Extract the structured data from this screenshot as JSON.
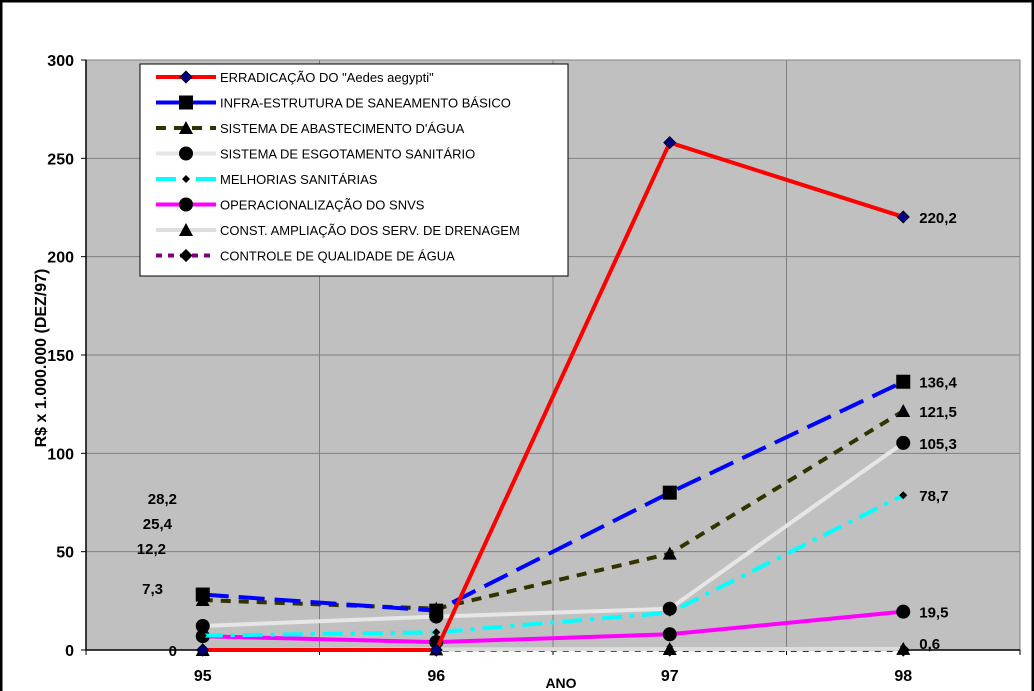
{
  "chart_data": {
    "type": "line",
    "xlabel": "ANO",
    "ylabel": "R$ x 1.000.000 (DEZ/97)",
    "categories": [
      "95",
      "96",
      "97",
      "98"
    ],
    "ylim": [
      0,
      300
    ],
    "yticks": [
      "0",
      "50",
      "100",
      "150",
      "200",
      "250",
      "300"
    ],
    "grid": true,
    "legend_position": "top-left",
    "series": [
      {
        "name": "ERRADICAÇÃO DO \"Aedes aegypti\"",
        "values": [
          0,
          0,
          258,
          220.2
        ],
        "color": "#ff0000",
        "dash": "solid",
        "marker": "diamond",
        "marker_color": "#000080",
        "labels": [
          "",
          "",
          "",
          "220,2"
        ]
      },
      {
        "name": "INFRA-ESTRUTURA DE SANEAMENTO BÁSICO",
        "values": [
          28.2,
          20,
          80,
          136.4
        ],
        "color": "#0000ff",
        "dash": "longdash",
        "marker": "square",
        "marker_color": "#000000",
        "labels": [
          "28,2",
          "",
          "",
          "136,4"
        ]
      },
      {
        "name": "SISTEMA DE ABASTECIMENTO D'ÁGUA",
        "values": [
          25.4,
          21,
          49,
          121.5
        ],
        "color": "#333300",
        "dash": "dash",
        "marker": "triangle",
        "marker_color": "#000000",
        "labels": [
          "25,4",
          "",
          "",
          "121,5"
        ]
      },
      {
        "name": "SISTEMA DE ESGOTAMENTO SANITÁRIO",
        "values": [
          12.2,
          17,
          21,
          105.3
        ],
        "color": "#e6e6e6",
        "dash": "solid",
        "marker": "circle",
        "marker_color": "#000000",
        "labels": [
          "12,2",
          "",
          "",
          "105,3"
        ]
      },
      {
        "name": "MELHORIAS SANITÁRIAS",
        "values": [
          7.3,
          9,
          19,
          78.7
        ],
        "color": "#00ffff",
        "dash": "dashdot",
        "marker": "smalldiamond",
        "marker_color": "#000000",
        "labels": [
          "7,3",
          "",
          "",
          "78,7"
        ]
      },
      {
        "name": "OPERACIONALIZAÇÃO DO SNVS",
        "values": [
          7,
          4,
          8,
          19.5
        ],
        "color": "#ff00ff",
        "dash": "solid",
        "marker": "circle",
        "marker_color": "#000000",
        "labels": [
          "",
          "",
          "",
          "19,5"
        ]
      },
      {
        "name": "CONST. AMPLIAÇÃO DOS SERV. DE DRENAGEM",
        "values": [
          0,
          0.3,
          0.5,
          0.6
        ],
        "color": "#dddddd",
        "dash": "solid",
        "marker": "triangle",
        "marker_color": "#000000",
        "labels": [
          "",
          "",
          "",
          "0,6"
        ]
      },
      {
        "name": "CONTROLE DE QUALIDADE DE ÁGUA",
        "values": [
          0,
          0,
          0,
          0
        ],
        "color": "#800080",
        "dash": "dot",
        "marker": "diamond",
        "marker_color": "#000000",
        "labels": [
          "0",
          "",
          "",
          ""
        ]
      }
    ]
  }
}
